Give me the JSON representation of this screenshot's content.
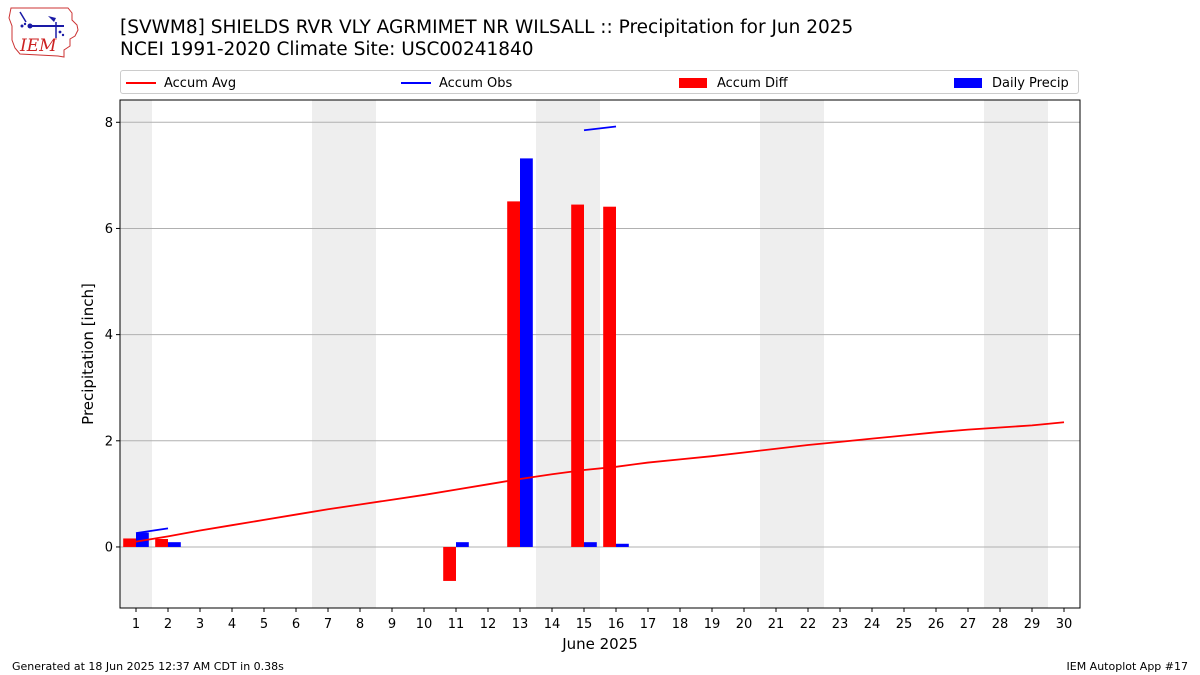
{
  "header": {
    "logo_text": "IEM",
    "title_line1": "[SVWM8] SHIELDS RVR VLY AGRMIMET NR WILSALL :: Precipitation for Jun 2025",
    "title_line2": "NCEI 1991-2020 Climate Site: USC00241840"
  },
  "footer": {
    "generated": "Generated at 18 Jun 2025 12:37 AM CDT in 0.38s",
    "app": "IEM Autoplot App #17"
  },
  "chart_data": {
    "type": "bar",
    "xlabel": "June 2025",
    "ylabel": "Precipitation [inch]",
    "xlim": [
      0.5,
      30.5
    ],
    "ylim": [
      -1.15,
      8.42
    ],
    "yticks": [
      0,
      2,
      4,
      6,
      8
    ],
    "categories": [
      "1",
      "2",
      "3",
      "4",
      "5",
      "6",
      "7",
      "8",
      "9",
      "10",
      "11",
      "12",
      "13",
      "14",
      "15",
      "16",
      "17",
      "18",
      "19",
      "20",
      "21",
      "22",
      "23",
      "24",
      "25",
      "26",
      "27",
      "28",
      "29",
      "30"
    ],
    "weekend_bands": [
      [
        0.5,
        1.5
      ],
      [
        6.5,
        8.5
      ],
      [
        13.5,
        15.5
      ],
      [
        20.5,
        22.5
      ],
      [
        27.5,
        29.5
      ]
    ],
    "grid": "horizontal",
    "legend_placement": "top",
    "series": [
      {
        "name": "Accum Avg",
        "kind": "line",
        "color": "#ff0000",
        "x": [
          1,
          2,
          3,
          4,
          5,
          6,
          7,
          8,
          9,
          10,
          11,
          12,
          13,
          14,
          15,
          16,
          17,
          18,
          19,
          20,
          21,
          22,
          23,
          24,
          25,
          26,
          27,
          28,
          29,
          30
        ],
        "values": [
          0.1,
          0.2,
          0.31,
          0.41,
          0.51,
          0.61,
          0.71,
          0.8,
          0.89,
          0.98,
          1.08,
          1.18,
          1.28,
          1.37,
          1.45,
          1.51,
          1.59,
          1.65,
          1.71,
          1.78,
          1.85,
          1.92,
          1.98,
          2.04,
          2.1,
          2.16,
          2.21,
          2.25,
          2.29,
          2.35
        ]
      },
      {
        "name": "Accum Obs",
        "kind": "line",
        "color": "#0000ff",
        "x": [
          1,
          2,
          15,
          16
        ],
        "values": [
          0.26,
          0.35,
          7.85,
          7.92
        ],
        "segments": [
          [
            0,
            1
          ],
          [
            2,
            3
          ]
        ]
      },
      {
        "name": "Accum Diff",
        "kind": "bar",
        "color": "#ff0000",
        "x": [
          1,
          2,
          11,
          13,
          15,
          16
        ],
        "values": [
          0.16,
          0.15,
          -0.64,
          6.51,
          6.45,
          6.41
        ]
      },
      {
        "name": "Daily Precip",
        "kind": "bar",
        "color": "#0000ff",
        "x": [
          1,
          2,
          11,
          13,
          15,
          16
        ],
        "values": [
          0.27,
          0.09,
          0.09,
          7.32,
          0.09,
          0.06
        ]
      }
    ]
  }
}
